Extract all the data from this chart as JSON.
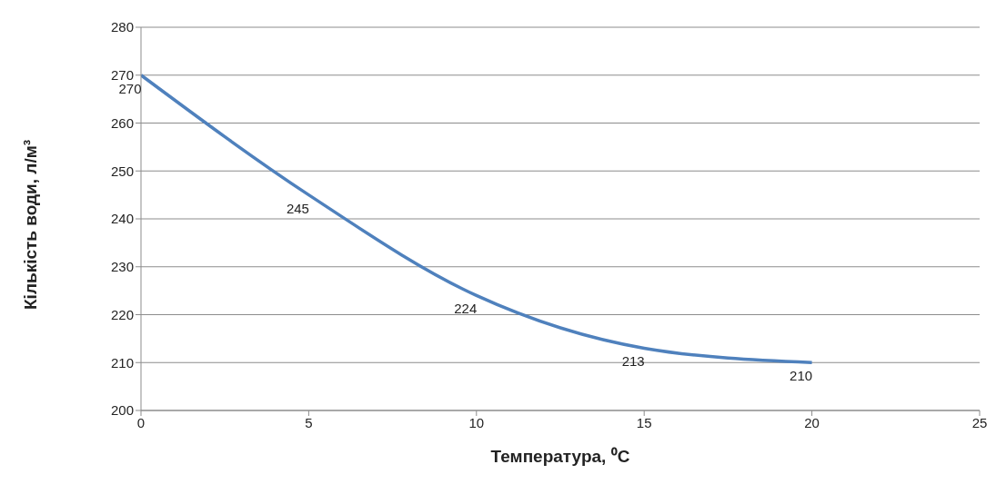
{
  "chart_data": {
    "type": "line",
    "xlabel": "Температура, ⁰C",
    "ylabel": "Кількість води, л/м³",
    "x": [
      0,
      5,
      10,
      15,
      20
    ],
    "series": [
      {
        "color": "#4f81bd",
        "values": [
          270,
          245,
          224,
          213,
          210
        ]
      }
    ],
    "xlim": [
      0,
      25
    ],
    "xticks": [
      0,
      5,
      10,
      15,
      20,
      25
    ],
    "ylim": [
      200,
      280
    ],
    "yticks": [
      200,
      210,
      220,
      230,
      240,
      250,
      260,
      270,
      280
    ],
    "grid": "y",
    "legend": false,
    "marker": "none",
    "line_style": "solid",
    "data_labels": true
  }
}
